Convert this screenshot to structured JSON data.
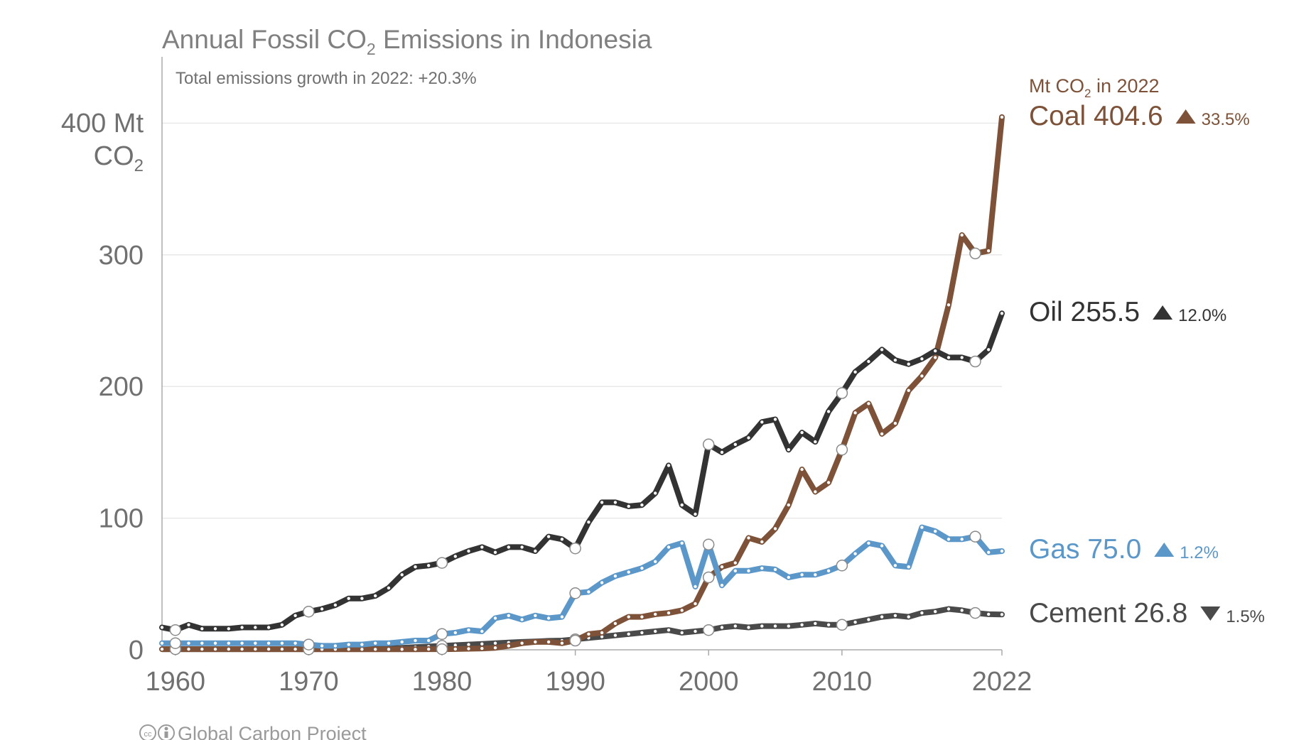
{
  "chart_data": {
    "type": "line",
    "title": "Annual Fossil CO",
    "title_sub": "2",
    "title_tail": " Emissions in Indonesia",
    "subtitle": "Total emissions growth in 2022: +20.3%",
    "ylabel_line1": "400 Mt",
    "ylabel_line2": "CO",
    "ylabel_sub": "2",
    "ylim": [
      0,
      450
    ],
    "xlim": [
      1959,
      2022
    ],
    "yticks": [
      {
        "value": 0,
        "label": "0"
      },
      {
        "value": 100,
        "label": "100"
      },
      {
        "value": 200,
        "label": "200"
      },
      {
        "value": 300,
        "label": "300"
      }
    ],
    "xticks": [
      {
        "value": 1960,
        "label": "1960"
      },
      {
        "value": 1970,
        "label": "1970"
      },
      {
        "value": 1980,
        "label": "1980"
      },
      {
        "value": 1990,
        "label": "1990"
      },
      {
        "value": 2000,
        "label": "2000"
      },
      {
        "value": 2010,
        "label": "2010"
      },
      {
        "value": 2022,
        "label": "2022"
      }
    ],
    "grid": true,
    "legend_header": "Mt CO",
    "legend_header_sub": "2",
    "legend_header_tail": " in 2022",
    "x": [
      1959,
      1960,
      1961,
      1962,
      1963,
      1964,
      1965,
      1966,
      1967,
      1968,
      1969,
      1970,
      1971,
      1972,
      1973,
      1974,
      1975,
      1976,
      1977,
      1978,
      1979,
      1980,
      1981,
      1982,
      1983,
      1984,
      1985,
      1986,
      1987,
      1988,
      1989,
      1990,
      1991,
      1992,
      1993,
      1994,
      1995,
      1996,
      1997,
      1998,
      1999,
      2000,
      2001,
      2002,
      2003,
      2004,
      2005,
      2006,
      2007,
      2008,
      2009,
      2010,
      2011,
      2012,
      2013,
      2014,
      2015,
      2016,
      2017,
      2018,
      2019,
      2020,
      2021,
      2022
    ],
    "highlight_years": [
      1960,
      1970,
      1980,
      1990,
      2000,
      2010,
      2020
    ],
    "series": [
      {
        "name": "Coal",
        "color": "#7d5238",
        "end_value": "404.6",
        "change": "33.5%",
        "direction": "up",
        "values": [
          0.5,
          0.5,
          0.5,
          0.5,
          0.5,
          0.5,
          0.5,
          0.5,
          0.5,
          0.5,
          0.5,
          0.4,
          0.4,
          0.4,
          0.4,
          0.4,
          0.4,
          0.4,
          0.4,
          0.4,
          0.5,
          0.5,
          0.6,
          0.8,
          1,
          1.5,
          3,
          5,
          6,
          6,
          5,
          7,
          12,
          13,
          20,
          25,
          25,
          27,
          28,
          30,
          35,
          55,
          63,
          66,
          85,
          82,
          92,
          110,
          137,
          120,
          127,
          152,
          180,
          187,
          164,
          172,
          197,
          208,
          222,
          262,
          315,
          301,
          303,
          404.6
        ]
      },
      {
        "name": "Oil",
        "color": "#333333",
        "end_value": "255.5",
        "change": "12.0%",
        "direction": "up",
        "values": [
          17,
          15,
          19,
          16,
          16,
          16,
          17,
          17,
          17,
          19,
          26,
          29,
          31,
          34,
          39,
          39,
          41,
          47,
          57,
          63,
          64,
          66,
          71,
          75,
          78,
          74,
          78,
          78,
          75,
          86,
          84,
          77,
          97,
          112,
          112,
          109,
          110,
          119,
          140,
          110,
          103,
          156,
          150,
          156,
          161,
          173,
          175,
          152,
          165,
          158,
          181,
          195,
          211,
          219,
          228,
          220,
          217,
          221,
          227,
          222,
          222,
          219,
          228,
          255.5
        ]
      },
      {
        "name": "Gas",
        "color": "#5b97c8",
        "end_value": "75.0",
        "change": "1.2%",
        "direction": "up",
        "values": [
          5,
          5,
          5,
          5,
          5,
          5,
          5,
          5,
          5,
          5,
          5,
          4,
          3,
          3,
          4,
          4,
          5,
          5,
          6,
          7,
          7,
          12,
          13,
          15,
          14,
          24,
          26,
          23,
          26,
          24,
          25,
          43,
          44,
          51,
          56,
          59,
          62,
          67,
          78,
          81,
          48,
          80,
          49,
          60,
          60,
          62,
          61,
          55,
          57,
          57,
          60,
          64,
          73,
          81,
          79,
          64,
          63,
          93,
          90,
          84,
          84,
          86,
          74,
          75
        ]
      },
      {
        "name": "Cement",
        "color": "#4a4a4a",
        "end_value": "26.8",
        "change": "1.5%",
        "direction": "down",
        "values": [
          0.5,
          0.5,
          0.5,
          0.5,
          0.5,
          0.5,
          0.5,
          0.5,
          0.5,
          0.5,
          0.5,
          0.5,
          0.6,
          0.7,
          0.8,
          0.9,
          1,
          1.2,
          1.5,
          2,
          2.5,
          3,
          3.5,
          4,
          4.5,
          5,
          5.5,
          6,
          6.3,
          6.8,
          7,
          8,
          9,
          10,
          11,
          12,
          13,
          14,
          15,
          13,
          14,
          15,
          17,
          18,
          17,
          18,
          18,
          18,
          19,
          20,
          19,
          19,
          21,
          23,
          25,
          26,
          25,
          28,
          29,
          31,
          30,
          28,
          27,
          26.8
        ]
      }
    ],
    "credit": "Global Carbon Project"
  }
}
